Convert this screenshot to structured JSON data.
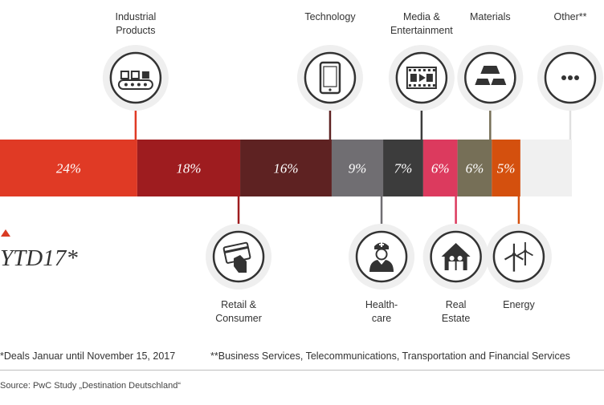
{
  "chart_data": {
    "type": "bar",
    "layout": "single stacked horizontal bar",
    "period": "YTD17*",
    "categories": [
      "Industrial Products",
      "Retail & Consumer",
      "Technology",
      "Health-care",
      "Media & Entertainment",
      "Real Estate",
      "Materials",
      "Energy",
      "Other**"
    ],
    "series": [
      {
        "values": [
          24,
          18,
          16,
          9,
          7,
          6,
          6,
          5,
          9
        ]
      }
    ],
    "value_labels": [
      "24%",
      "18%",
      "16%",
      "9%",
      "7%",
      "6%",
      "6%",
      "5%",
      ""
    ],
    "colors": [
      "#e03a25",
      "#9e1c1f",
      "#5e2222",
      "#706e72",
      "#3c3c3c",
      "#dc3a5e",
      "#766f57",
      "#d4500e",
      "#f0f0f0"
    ],
    "label_lines": [
      [
        "Industrial",
        "Products"
      ],
      [
        "Retail &",
        "Consumer"
      ],
      [
        "Technology"
      ],
      [
        "Health-",
        "care"
      ],
      [
        "Media &",
        "Entertainment"
      ],
      [
        "Real",
        "Estate"
      ],
      [
        "Materials"
      ],
      [
        "Energy"
      ],
      [
        "Other**"
      ]
    ],
    "icons": [
      "conveyor-belt-icon",
      "credit-card-icon",
      "tablet-icon",
      "nurse-icon",
      "film-strip-icon",
      "house-icon",
      "gold-bars-icon",
      "wind-turbine-icon",
      "ellipsis-icon"
    ],
    "label_side": [
      "top",
      "bottom",
      "top",
      "bottom",
      "top",
      "bottom",
      "top",
      "bottom",
      "top"
    ],
    "accent": "#d93a22"
  },
  "footnotes": {
    "deals": "*Deals Januar until November 15, 2017",
    "business": "**Business Services, Telecommunications, Transportation and Financial Services"
  },
  "source": "Source: PwC Study „Destination Deutschland“"
}
